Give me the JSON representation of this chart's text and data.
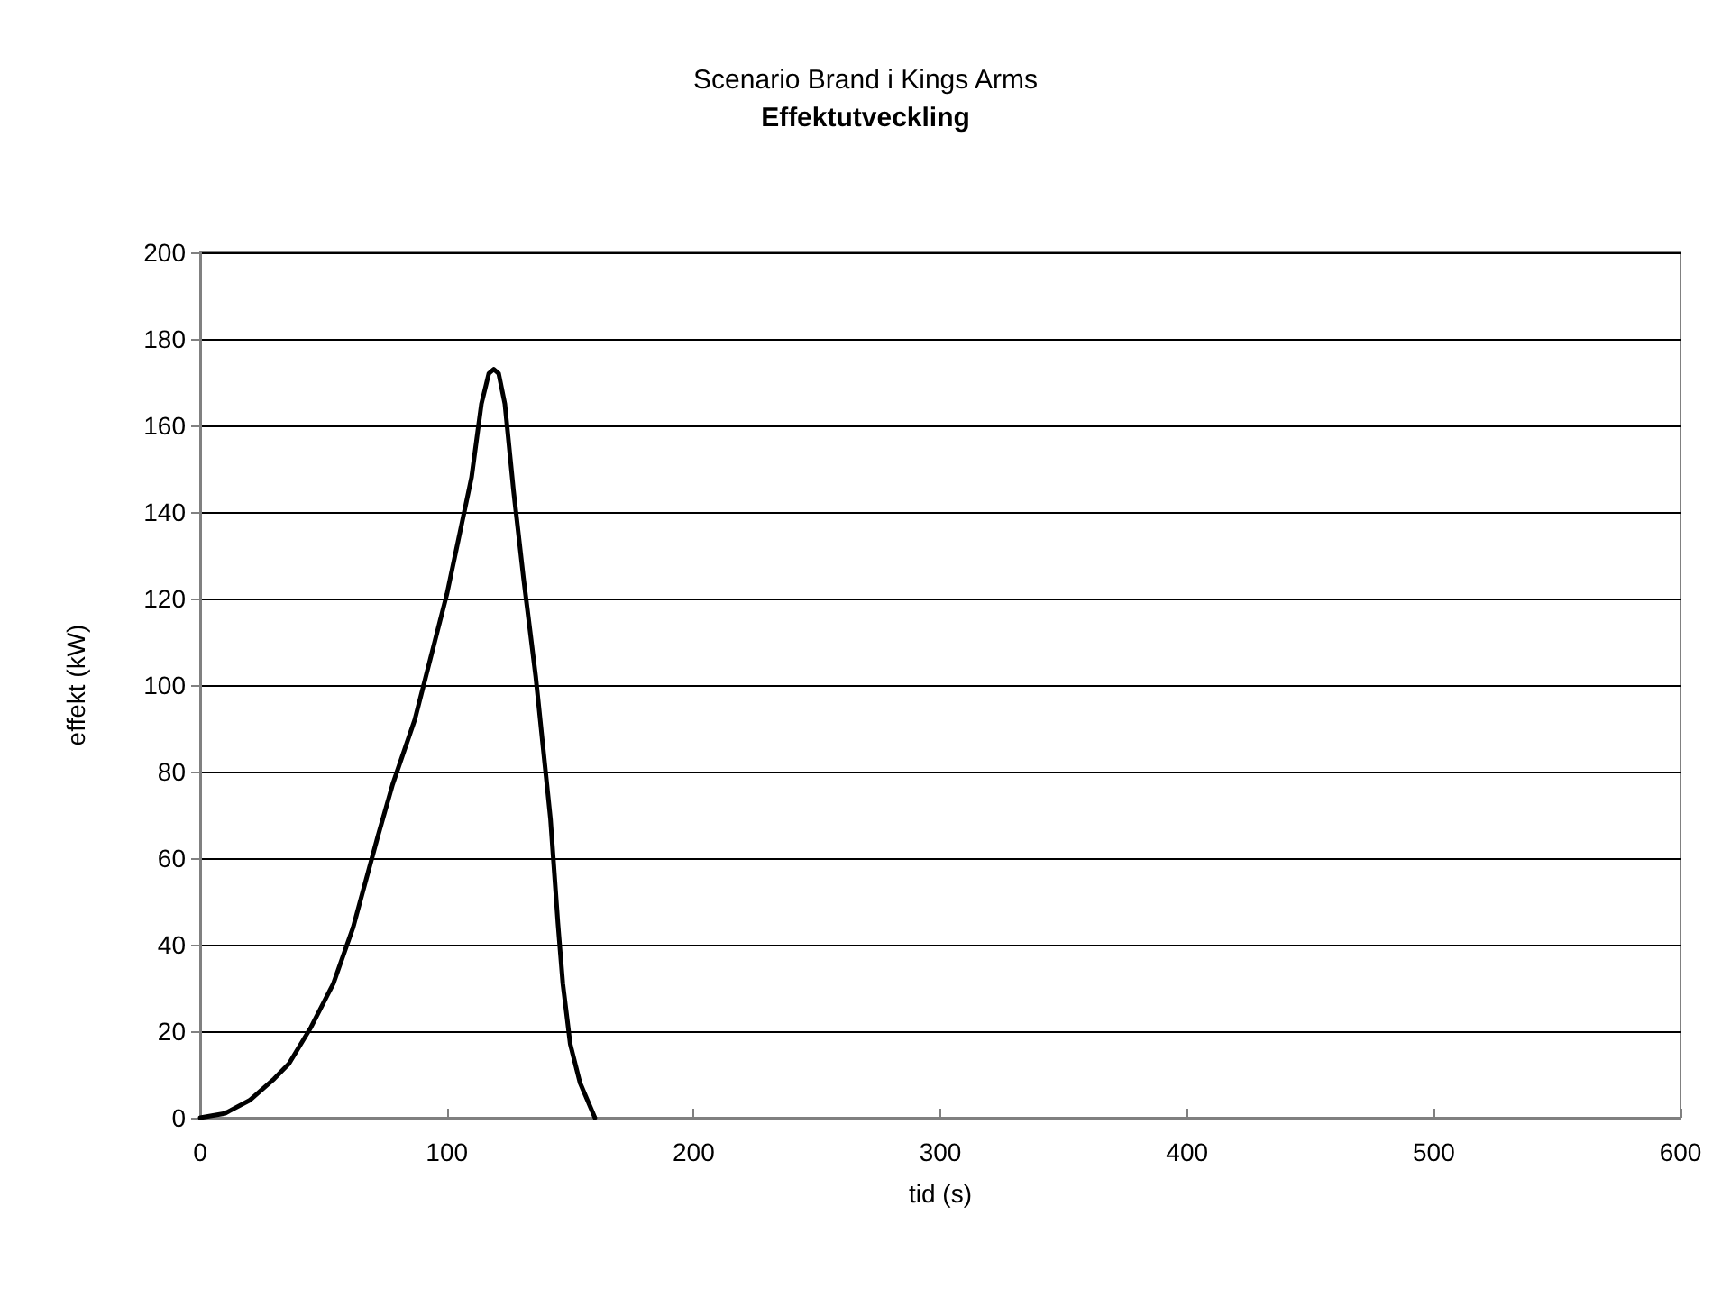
{
  "chart_data": {
    "type": "line",
    "title": "Scenario Brand i Kings Arms",
    "subtitle": "Effektutveckling",
    "xlabel": "tid (s)",
    "ylabel": "effekt (kW)",
    "x": [
      0,
      10,
      20,
      30,
      36,
      45,
      54,
      62,
      72,
      78,
      87,
      100,
      110,
      114,
      117,
      119,
      121,
      123.5,
      127,
      131,
      136,
      142,
      145,
      147,
      150,
      154,
      157,
      160
    ],
    "series": [
      {
        "color": "#000000",
        "values": [
          0,
          1,
          4,
          9,
          12.5,
          21,
          31,
          44,
          65,
          77,
          92,
          121,
          148,
          165,
          172,
          173,
          172,
          165,
          145,
          125,
          102,
          69,
          45,
          31,
          17,
          8,
          4,
          0
        ]
      }
    ],
    "xlim": [
      0,
      600
    ],
    "xticks": [
      0,
      100,
      200,
      300,
      400,
      500,
      600
    ],
    "ylim": [
      0,
      200
    ],
    "yticks": [
      0,
      20,
      40,
      60,
      80,
      100,
      120,
      140,
      160,
      180,
      200
    ],
    "grid": "y",
    "marker": "none",
    "line_style": "solid"
  }
}
